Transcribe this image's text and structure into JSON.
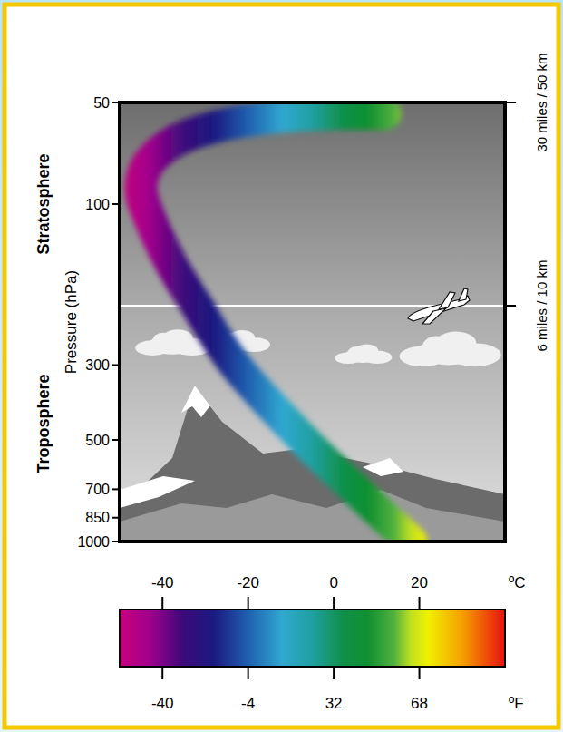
{
  "chart_data": {
    "type": "line",
    "log": "y",
    "x": [
      18,
      12,
      5,
      -7,
      -23,
      -32,
      -38,
      -43,
      -45,
      -43,
      -36,
      -25,
      -12,
      0,
      12
    ],
    "values": [
      1000,
      850,
      700,
      500,
      300,
      200,
      150,
      110,
      90,
      75,
      64,
      58,
      55,
      54,
      54
    ],
    "xlim": [
      -50,
      40
    ],
    "xticks": [
      -40,
      -20,
      0,
      20
    ],
    "xlabel": "ºC",
    "x2lim": [
      -58,
      104
    ],
    "x2ticks": [
      -40,
      -4,
      32,
      68
    ],
    "x2label": "ºF",
    "ylim": [
      1000,
      50
    ],
    "yticks": [
      50,
      100,
      300,
      500,
      700,
      850,
      1000
    ],
    "ylabel": "Pressure (hPa)",
    "regions": [
      {
        "label": "Stratosphere",
        "range": [
          200,
          50
        ]
      },
      {
        "label": "Troposphere",
        "range": [
          1000,
          200
        ]
      }
    ],
    "altitude_labels": [
      {
        "text": "30 miles / 50 km",
        "y": 50
      },
      {
        "text": "6 miles / 10 km",
        "y": 200
      }
    ]
  }
}
